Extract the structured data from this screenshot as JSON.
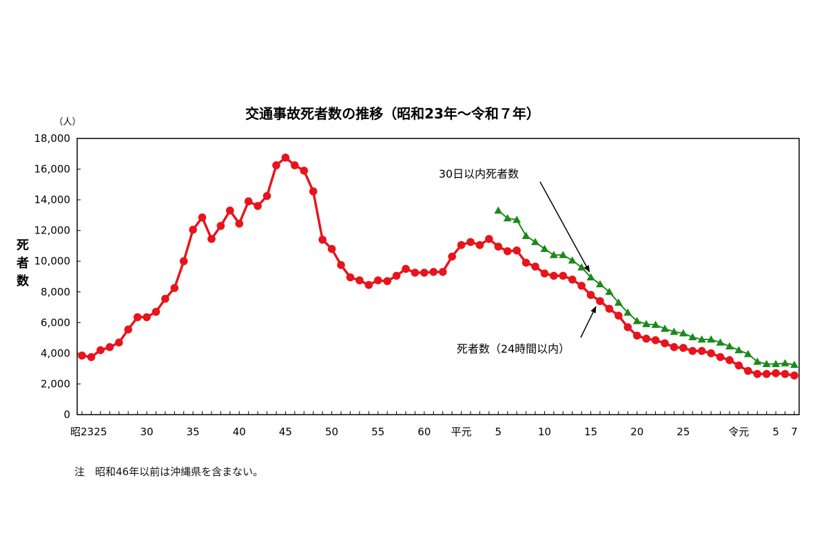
{
  "chart_data": {
    "type": "line",
    "title": "交通事故死者数の推移（昭和23年～令和７年）",
    "y_unit": "（人）",
    "ylabel": "死者数",
    "ylim": [
      0,
      18000
    ],
    "y_ticks": [
      "0",
      "2,000",
      "4,000",
      "6,000",
      "8,000",
      "10,000",
      "12,000",
      "14,000",
      "16,000",
      "18,000"
    ],
    "grid": false,
    "x_start": 1948,
    "x_end": 2025,
    "x_tick_labels": [
      {
        "year": 1948,
        "label": "昭23"
      },
      {
        "year": 1950,
        "label": "25"
      },
      {
        "year": 1955,
        "label": "30"
      },
      {
        "year": 1960,
        "label": "35"
      },
      {
        "year": 1965,
        "label": "40"
      },
      {
        "year": 1970,
        "label": "45"
      },
      {
        "year": 1975,
        "label": "50"
      },
      {
        "year": 1980,
        "label": "55"
      },
      {
        "year": 1985,
        "label": "60"
      },
      {
        "year": 1989,
        "label": "平元"
      },
      {
        "year": 1993,
        "label": "5"
      },
      {
        "year": 1998,
        "label": "10"
      },
      {
        "year": 2003,
        "label": "15"
      },
      {
        "year": 2008,
        "label": "20"
      },
      {
        "year": 2013,
        "label": "25"
      },
      {
        "year": 2019,
        "label": "令元"
      },
      {
        "year": 2023,
        "label": "5"
      },
      {
        "year": 2025,
        "label": "7"
      }
    ],
    "series": [
      {
        "name": "死者数（24時間以内）",
        "color": "#e8141c",
        "marker": "circle",
        "x_start": 1948,
        "values": [
          3850,
          3750,
          4200,
          4400,
          4700,
          5550,
          6350,
          6350,
          6700,
          7550,
          8250,
          10000,
          12050,
          12850,
          11450,
          12300,
          13300,
          12450,
          13900,
          13600,
          14250,
          16250,
          16750,
          16250,
          15900,
          14550,
          11400,
          10800,
          9750,
          8950,
          8750,
          8450,
          8750,
          8700,
          9050,
          9500,
          9250,
          9250,
          9300,
          9300,
          10300,
          11050,
          11250,
          11050,
          11450,
          10950,
          10650,
          10700,
          9900,
          9650,
          9200,
          9050,
          9050,
          8800,
          8400,
          7800,
          7400,
          6900,
          6450,
          5700,
          5150,
          4950,
          4850,
          4650,
          4400,
          4350,
          4150,
          4150,
          4000,
          3750,
          3550,
          3200,
          2850,
          2650,
          2650,
          2700,
          2650,
          2550
        ]
      },
      {
        "name": "30日以内死者数",
        "color": "#1b8a1b",
        "marker": "triangle",
        "x_start": 1993,
        "values": [
          13300,
          12800,
          12700,
          11650,
          11250,
          10800,
          10400,
          10400,
          10050,
          9600,
          8950,
          8500,
          8000,
          7300,
          6650,
          6100,
          5900,
          5850,
          5600,
          5400,
          5300,
          5050,
          4900,
          4900,
          4700,
          4450,
          4200,
          3950,
          3450,
          3300,
          3300,
          3350,
          3250
        ]
      }
    ],
    "annotations": [
      {
        "text": "30日以内死者数",
        "series": 1,
        "arrow_to_year": 2003
      },
      {
        "text": "死者数（24時間以内）",
        "series": 0,
        "arrow_to_year": 2004
      }
    ]
  },
  "note": "注　昭和46年以前は沖縄県を含まない。"
}
